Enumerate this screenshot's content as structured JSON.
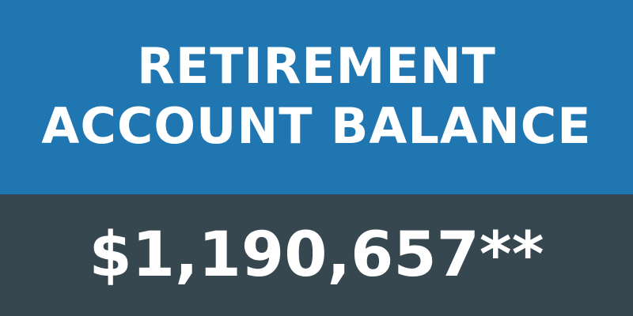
{
  "header": {
    "title_line_1": "RETIREMENT",
    "title_line_2": "ACCOUNT BALANCE"
  },
  "balance": {
    "amount": "$1,190,657**"
  },
  "colors": {
    "header_background": "#1f76b1",
    "balance_background": "#37474f",
    "text": "#ffffff"
  }
}
